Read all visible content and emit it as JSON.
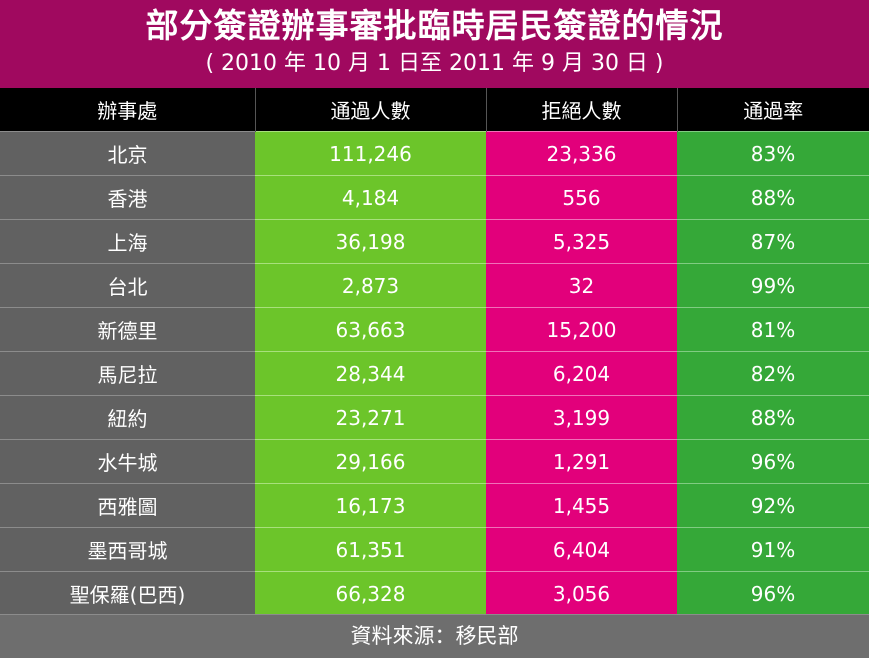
{
  "header": {
    "title": "部分簽證辦事審批臨時居民簽證的情況",
    "subtitle": "( 2010 年 10 月 1 日至 2011 年 9 月 30 日 )"
  },
  "colors": {
    "title_band": "#a0095f",
    "office_column": "#616161",
    "approved_column": "#6cc52a",
    "rejected_column": "#e2007b",
    "rate_column": "#35a838",
    "header_row": "#000000"
  },
  "chart_data": {
    "type": "table",
    "title": "部分簽證辦事審批臨時居民簽證的情況",
    "subtitle": "( 2010 年 10 月 1 日至 2011 年 9 月 30 日 )",
    "columns": [
      "辦事處",
      "通過人數",
      "拒絕人數",
      "通過率"
    ],
    "rows": [
      [
        "北京",
        "111,246",
        "23,336",
        "83%"
      ],
      [
        "香港",
        "4,184",
        "556",
        "88%"
      ],
      [
        "上海",
        "36,198",
        "5,325",
        "87%"
      ],
      [
        "台北",
        "2,873",
        "32",
        "99%"
      ],
      [
        "新德里",
        "63,663",
        "15,200",
        "81%"
      ],
      [
        "馬尼拉",
        "28,344",
        "6,204",
        "82%"
      ],
      [
        "紐約",
        "23,271",
        "3,199",
        "88%"
      ],
      [
        "水牛城",
        "29,166",
        "1,291",
        "96%"
      ],
      [
        "西雅圖",
        "16,173",
        "1,455",
        "92%"
      ],
      [
        "墨西哥城",
        "61,351",
        "6,404",
        "91%"
      ],
      [
        "聖保羅(巴西)",
        "66,328",
        "3,056",
        "96%"
      ]
    ],
    "source": "資料來源：移民部"
  }
}
